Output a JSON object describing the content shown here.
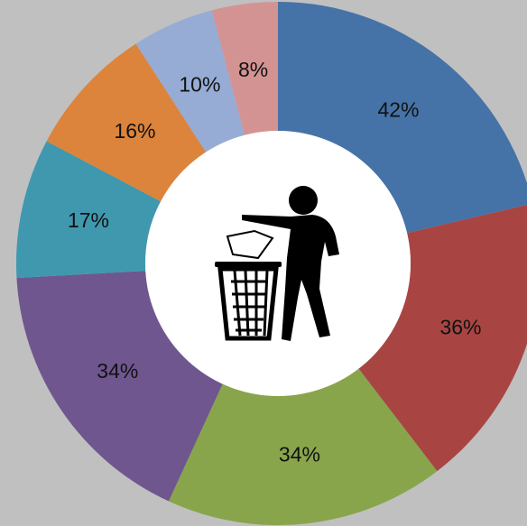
{
  "chart_data": {
    "type": "donut",
    "categories": [
      null,
      null,
      null,
      null,
      null,
      null,
      null,
      null
    ],
    "values": [
      42,
      36,
      34,
      34,
      17,
      16,
      10,
      8
    ],
    "value_labels": [
      "42%",
      "36%",
      "34%",
      "34%",
      "17%",
      "16%",
      "10%",
      "8%"
    ],
    "colors": [
      "#4573a7",
      "#a84543",
      "#88a54b",
      "#6f568f",
      "#3f98ae",
      "#dc843b",
      "#96acd5",
      "#d49393"
    ]
  }
}
